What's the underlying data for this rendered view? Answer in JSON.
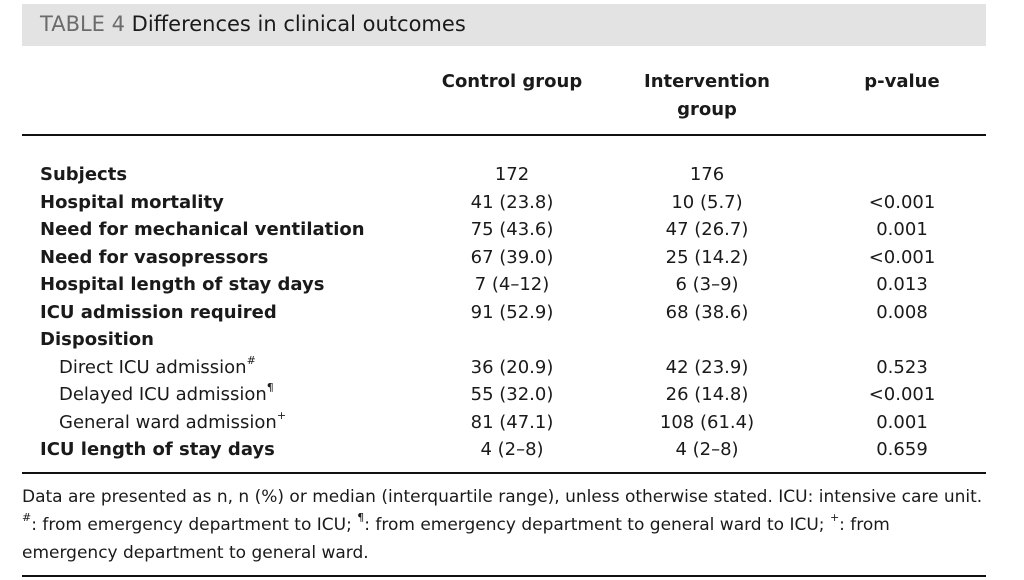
{
  "table": {
    "label": "TABLE 4",
    "title": "Differences in clinical outcomes",
    "columns": {
      "control": "Control group",
      "intervention_line1": "Intervention",
      "intervention_line2": "group",
      "pvalue": "p-value"
    },
    "rows": [
      {
        "label": "Subjects",
        "mark": "",
        "control": "172",
        "intervention": "176",
        "p": ""
      },
      {
        "label": "Hospital mortality",
        "mark": "",
        "control": "41 (23.8)",
        "intervention": "10 (5.7)",
        "p": "<0.001"
      },
      {
        "label": "Need for mechanical ventilation",
        "mark": "",
        "control": "75 (43.6)",
        "intervention": "47 (26.7)",
        "p": "0.001"
      },
      {
        "label": "Need for vasopressors",
        "mark": "",
        "control": "67 (39.0)",
        "intervention": "25 (14.2)",
        "p": "<0.001"
      },
      {
        "label": "Hospital length of stay days",
        "mark": "",
        "control": "7 (4–12)",
        "intervention": "6 (3–9)",
        "p": "0.013"
      },
      {
        "label": "ICU admission required",
        "mark": "",
        "control": "91 (52.9)",
        "intervention": "68 (38.6)",
        "p": "0.008"
      },
      {
        "label": "Disposition",
        "mark": "",
        "control": "",
        "intervention": "",
        "p": ""
      },
      {
        "label": "Direct ICU admission",
        "mark": "#",
        "control": "36 (20.9)",
        "intervention": "42 (23.9)",
        "p": "0.523"
      },
      {
        "label": "Delayed ICU admission",
        "mark": "¶",
        "control": "55 (32.0)",
        "intervention": "26 (14.8)",
        "p": "<0.001"
      },
      {
        "label": "General ward admission",
        "mark": "+",
        "control": "81 (47.1)",
        "intervention": "108 (61.4)",
        "p": "0.001"
      },
      {
        "label": "ICU length of stay days",
        "mark": "",
        "control": "4 (2–8)",
        "intervention": "4 (2–8)",
        "p": "0.659"
      }
    ],
    "footnote": {
      "part1": "Data are presented as n, n (%) or median (interquartile range), unless otherwise stated. ICU: intensive care unit. ",
      "mark1": "#",
      "part2": ": from emergency department to ICU; ",
      "mark2": "¶",
      "part3": ": from emergency department to general ward to ICU; ",
      "mark3": "+",
      "part4": ": from emergency department to general ward."
    }
  }
}
